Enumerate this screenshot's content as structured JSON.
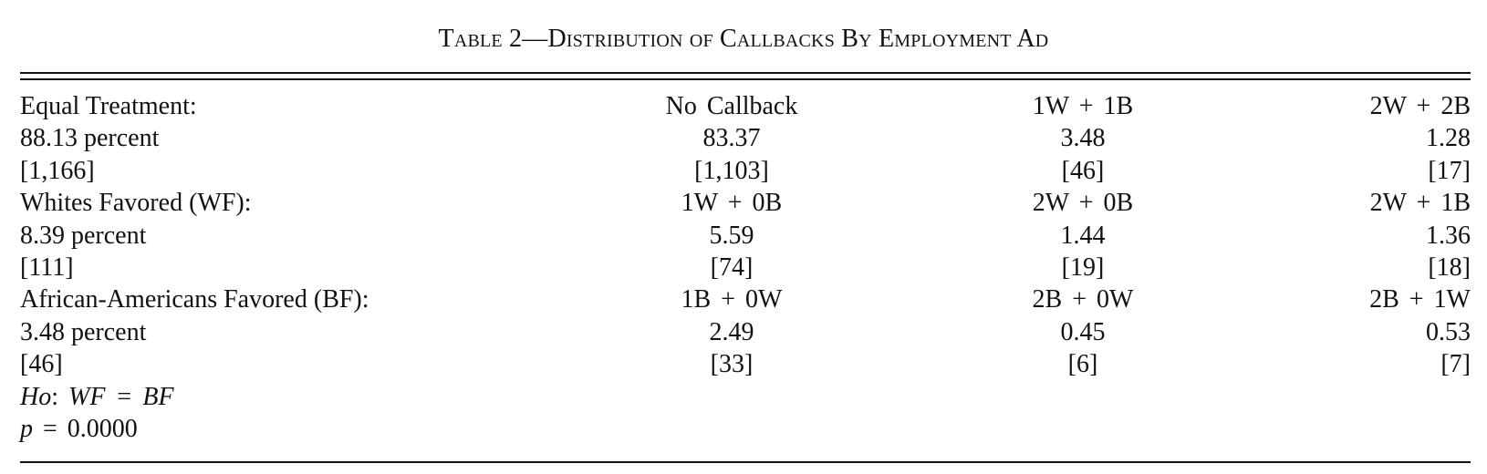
{
  "table": {
    "title": "Table 2—Distribution of Callbacks By Employment Ad",
    "rows": [
      [
        "Equal Treatment:",
        "No Callback",
        "1W + 1B",
        "2W + 2B"
      ],
      [
        "88.13 percent",
        "83.37",
        "3.48",
        "1.28"
      ],
      [
        "[1,166]",
        "[1,103]",
        "[46]",
        "[17]"
      ],
      [
        "Whites Favored (WF):",
        "1W + 0B",
        "2W + 0B",
        "2W + 1B"
      ],
      [
        "8.39 percent",
        "5.59",
        "1.44",
        "1.36"
      ],
      [
        "[111]",
        "[74]",
        "[19]",
        "[18]"
      ],
      [
        "African-Americans Favored (BF):",
        "1B + 0W",
        "2B + 0W",
        "2B + 1W"
      ],
      [
        "3.48 percent",
        "2.49",
        "0.45",
        "0.53"
      ],
      [
        "[46]",
        "[33]",
        "[6]",
        "[7]"
      ]
    ],
    "hypothesis": {
      "ho_label": "Ho",
      "ho_rest": ": ",
      "ho_expr": "WF = BF"
    },
    "pvalue": {
      "p_label": "p",
      "p_rest": " = 0.0000"
    }
  }
}
